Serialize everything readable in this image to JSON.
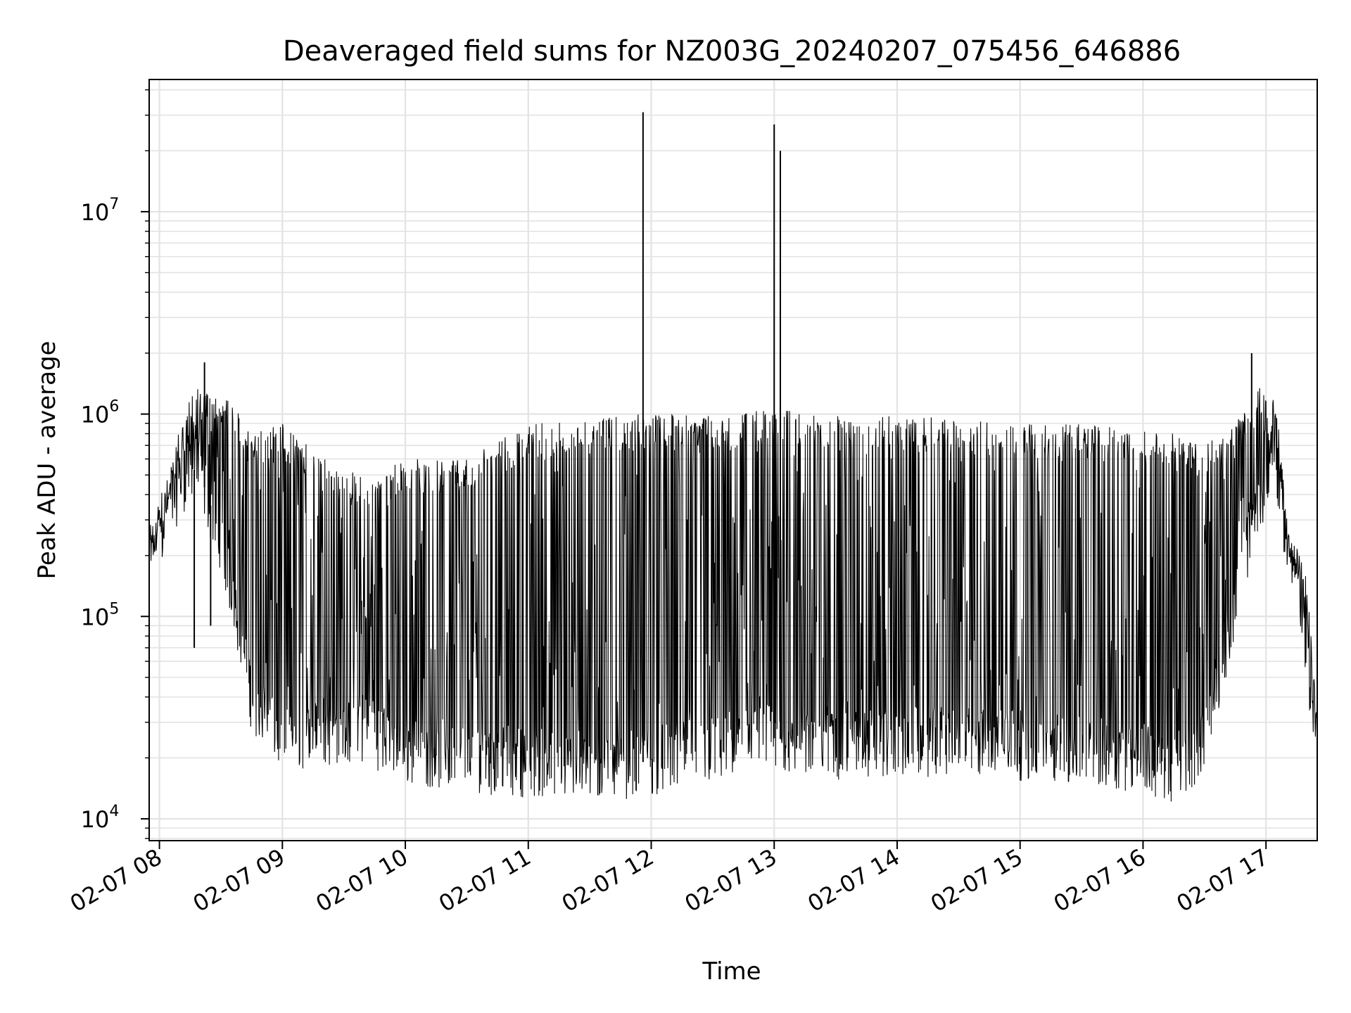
{
  "chart_data": {
    "type": "line",
    "title": "Deaveraged field sums for NZ003G_20240207_075456_646886",
    "xlabel": "Time",
    "ylabel": "Peak ADU - average",
    "yscale": "log",
    "ylim": [
      7800,
      45000000
    ],
    "xlim": [
      "2024-02-07 07:55",
      "2024-02-07 17:25"
    ],
    "grid": true,
    "line_color": "#000000",
    "grid_color": "#e3e3e3",
    "x_tick_labels": [
      "02-07 08",
      "02-07 09",
      "02-07 10",
      "02-07 11",
      "02-07 12",
      "02-07 13",
      "02-07 14",
      "02-07 15",
      "02-07 16",
      "02-07 17"
    ],
    "x_tick_values": [
      "2024-02-07 08:00",
      "2024-02-07 09:00",
      "2024-02-07 10:00",
      "2024-02-07 11:00",
      "2024-02-07 12:00",
      "2024-02-07 13:00",
      "2024-02-07 14:00",
      "2024-02-07 15:00",
      "2024-02-07 16:00",
      "2024-02-07 17:00"
    ],
    "y_tick_labels": [
      {
        "value": 10000,
        "base": "10",
        "exp": "4"
      },
      {
        "value": 100000,
        "base": "10",
        "exp": "5"
      },
      {
        "value": 1000000,
        "base": "10",
        "exp": "6"
      },
      {
        "value": 10000000,
        "base": "10",
        "exp": "7"
      }
    ],
    "series": [
      {
        "x": [
          "2024-02-07 07:55",
          "2024-02-07 08:02",
          "2024-02-07 08:10",
          "2024-02-07 08:15",
          "2024-02-07 08:20",
          "2024-02-07 08:30",
          "2024-02-07 08:40",
          "2024-02-07 08:45",
          "2024-02-07 09:00",
          "2024-02-07 09:20",
          "2024-02-07 09:40",
          "2024-02-07 10:00",
          "2024-02-07 10:30",
          "2024-02-07 11:00",
          "2024-02-07 11:30",
          "2024-02-07 11:55",
          "2024-02-07 12:30",
          "2024-02-07 13:00",
          "2024-02-07 13:30",
          "2024-02-07 14:00",
          "2024-02-07 14:30",
          "2024-02-07 15:00",
          "2024-02-07 15:30",
          "2024-02-07 16:00",
          "2024-02-07 16:15",
          "2024-02-07 16:30",
          "2024-02-07 16:45",
          "2024-02-07 16:55",
          "2024-02-07 17:05",
          "2024-02-07 17:10",
          "2024-02-07 17:15",
          "2024-02-07 17:20",
          "2024-02-07 17:25"
        ],
        "y_floor": [
          200000,
          300000,
          450000,
          550000,
          500000,
          250000,
          80000,
          40000,
          25000,
          27000,
          28000,
          22000,
          20000,
          19000,
          18000,
          19000,
          22000,
          25000,
          23000,
          24000,
          24000,
          23000,
          22000,
          20000,
          17000,
          25000,
          120000,
          350000,
          600000,
          250000,
          180000,
          60000,
          22000
        ],
        "y_peak": [
          250000,
          400000,
          900000,
          1200000,
          1400000,
          1300000,
          1000000,
          800000,
          900000,
          600000,
          500000,
          600000,
          600000,
          900000,
          950000,
          1000000,
          1000000,
          1050000,
          1000000,
          1000000,
          950000,
          900000,
          900000,
          850000,
          800000,
          700000,
          900000,
          1400000,
          1200000,
          250000,
          230000,
          150000,
          30000
        ]
      }
    ],
    "spikes": [
      {
        "x": "2024-02-07 11:56",
        "y": 31000000
      },
      {
        "x": "2024-02-07 13:00",
        "y": 27000000
      },
      {
        "x": "2024-02-07 13:03",
        "y": 20000000
      },
      {
        "x": "2024-02-07 08:17",
        "y": 70000
      },
      {
        "x": "2024-02-07 08:25",
        "y": 90000
      },
      {
        "x": "2024-02-07 16:53",
        "y": 2000000
      },
      {
        "x": "2024-02-07 08:22",
        "y": 1800000
      }
    ]
  }
}
